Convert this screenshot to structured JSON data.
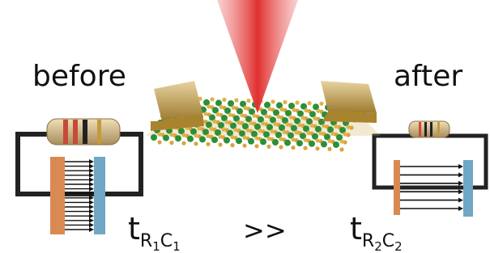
{
  "labels": {
    "before": "before",
    "after": "after"
  },
  "relation": ">>",
  "left_constant": {
    "base": "t",
    "subscripts": [
      {
        "letter": "R",
        "index": "1"
      },
      {
        "letter": "C",
        "index": "1"
      }
    ]
  },
  "right_constant": {
    "base": "t",
    "subscripts": [
      {
        "letter": "R",
        "index": "2"
      },
      {
        "letter": "C",
        "index": "2"
      }
    ]
  }
}
